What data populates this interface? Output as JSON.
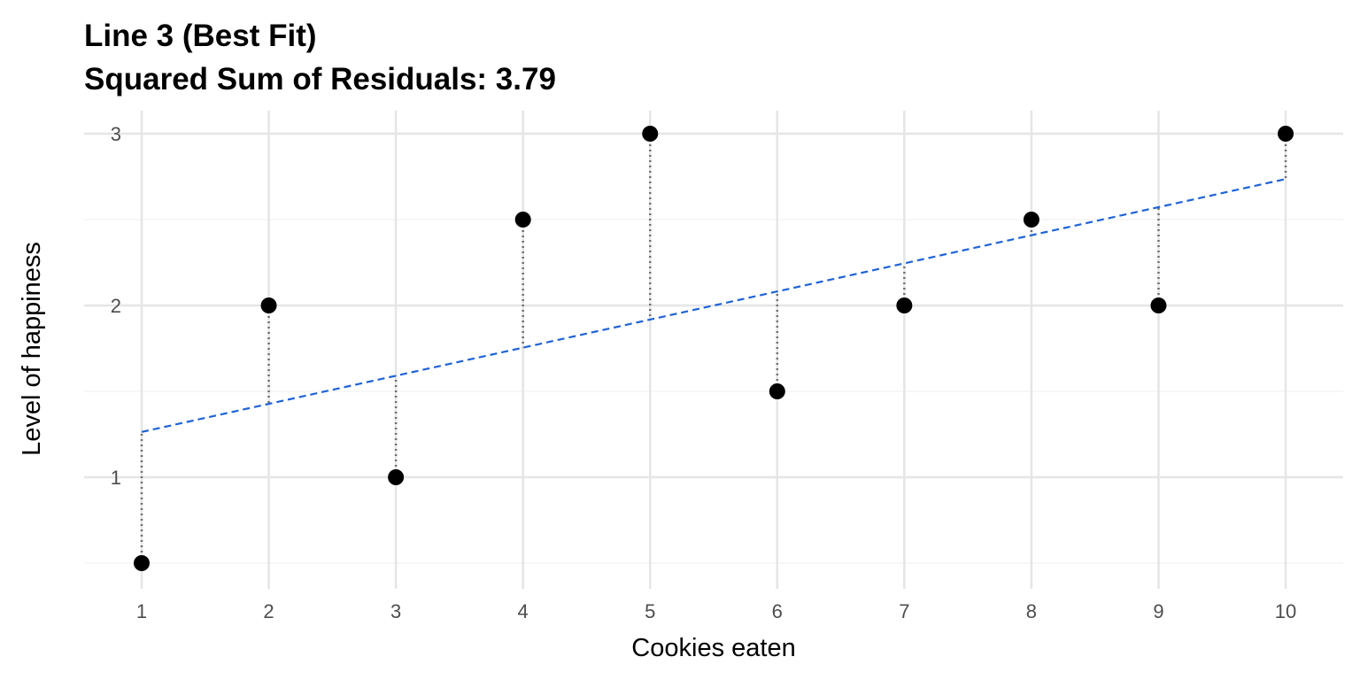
{
  "chart_data": {
    "type": "scatter",
    "title": "Line 3 (Best Fit)",
    "subtitle": "Squared Sum of Residuals: 3.79",
    "xlabel": "Cookies eaten",
    "ylabel": "Level of happiness",
    "xlim": [
      0.55,
      10.45
    ],
    "ylim": [
      0.43,
      3.12
    ],
    "xticks": [
      "1",
      "2",
      "3",
      "4",
      "5",
      "6",
      "7",
      "8",
      "9",
      "10"
    ],
    "yticks": [
      "1",
      "2",
      "3"
    ],
    "grid": true,
    "points": {
      "x": [
        1,
        2,
        3,
        4,
        5,
        6,
        7,
        8,
        9,
        10
      ],
      "y": [
        0.5,
        2,
        1,
        2.5,
        3,
        1.5,
        2,
        2.5,
        2,
        3
      ]
    },
    "fit_line": {
      "intercept": 1.1,
      "slope": 0.1636,
      "style": "dashed",
      "color": "#1f63d8"
    },
    "residuals": {
      "style": "dotted",
      "color": "#707070"
    },
    "point_color": "#000000"
  }
}
